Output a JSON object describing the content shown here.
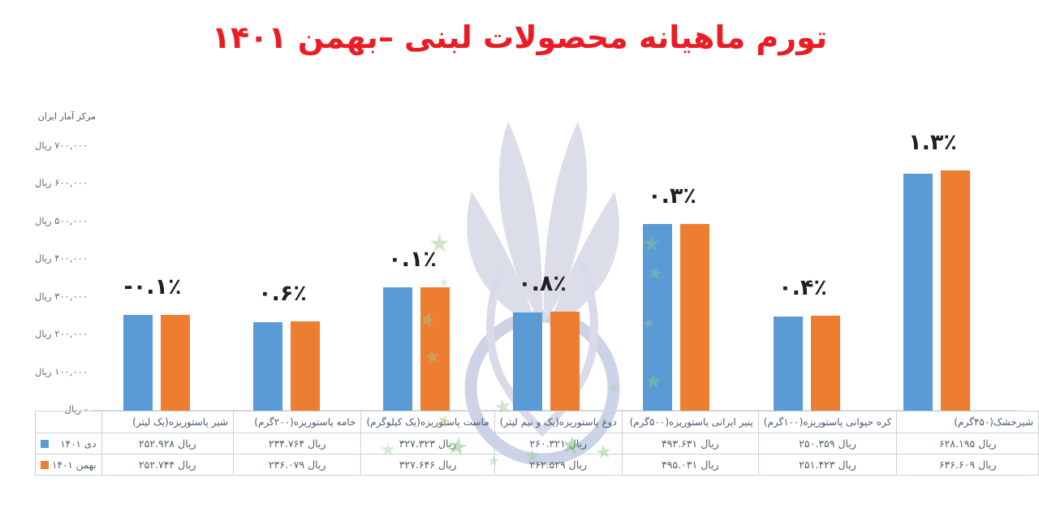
{
  "title": "تورم ماهیانه محصولات لبنی –بهمن ۱۴۰۱",
  "source": "مرکز آمار ایران",
  "colors": {
    "title_red": "#ec1c24",
    "series_dey_blue": "#5b9bd5",
    "series_bahman_orange": "#ed7d31",
    "table_border": "#c9d1dc",
    "watermark_blue_gray": "#dbdde9",
    "watermark_ring": "#ccd3e6",
    "watermark_star_green": "#9ccf94"
  },
  "chart_data": {
    "type": "bar",
    "title": "تورم ماهیانه محصولات لبنی –بهمن ۱۴۰۱",
    "unit": "ریال",
    "grid": false,
    "legend_position": "table-rows-left",
    "categories": [
      "شیر پاستوریزه(یک لیتر)",
      "خامه پاستوریزه(۲۰۰گرم)",
      "ماست پاستوریزه(یک کیلوگرم)",
      "دوغ پاستوریزه(یک و نیم لیتر)",
      "پنیر ایرانی پاستوریزه(۵۰۰گرم)",
      "کره حیوانی پاستوریزه(۱۰۰گرم)",
      "شیرخشک(۴۵۰گرم)"
    ],
    "series": [
      {
        "name": "دی ۱۴۰۱",
        "color": "#5b9bd5",
        "values": [
          252928,
          234764,
          327323,
          260321,
          493631,
          250359,
          628195
        ],
        "value_labels": [
          "۲۵۲.۹۲۸ ریال",
          "۲۳۴.۷۶۴ ریال",
          "۳۲۷.۳۲۳ ریال",
          "۲۶۰.۳۲۱ ریال",
          "۴۹۳.۶۳۱ ریال",
          "۲۵۰.۳۵۹ ریال",
          "۶۲۸.۱۹۵ ریال"
        ]
      },
      {
        "name": "بهمن ۱۴۰۱",
        "color": "#ed7d31",
        "values": [
          252744,
          236079,
          327646,
          262529,
          495031,
          251423,
          636609
        ],
        "value_labels": [
          "۲۵۲.۷۴۴ ریال",
          "۲۳۶.۰۷۹ ریال",
          "۳۲۷.۶۴۶ ریال",
          "۲۶۲.۵۲۹ ریال",
          "۴۹۵.۰۳۱ ریال",
          "۲۵۱.۴۲۳ ریال",
          "۶۳۶.۶۰۹ ریال"
        ]
      }
    ],
    "pct_change_labels": [
      "-۰.۱٪",
      "۰.۶٪",
      "۰.۱٪",
      "۰.۸٪",
      "۰.۳٪",
      "۰.۴٪",
      "۱.۳٪"
    ],
    "y_axis": {
      "ylim": [
        0,
        700000
      ],
      "ticks": [
        {
          "label": "۷۰۰,۰۰۰ ریال",
          "value": 700000
        },
        {
          "label": "۶۰۰,۰۰۰ ریال",
          "value": 600000
        },
        {
          "label": "۵۰۰,۰۰۰ ریال",
          "value": 500000
        },
        {
          "label": "۴۰۰,۰۰۰ ریال",
          "value": 400000
        },
        {
          "label": "۳۰۰,۰۰۰ ریال",
          "value": 300000
        },
        {
          "label": "۲۰۰,۰۰۰ ریال",
          "value": 200000
        },
        {
          "label": "۱۰۰,۰۰۰ ریال",
          "value": 100000
        },
        {
          "label": "- ریال",
          "value": 0
        }
      ]
    }
  }
}
